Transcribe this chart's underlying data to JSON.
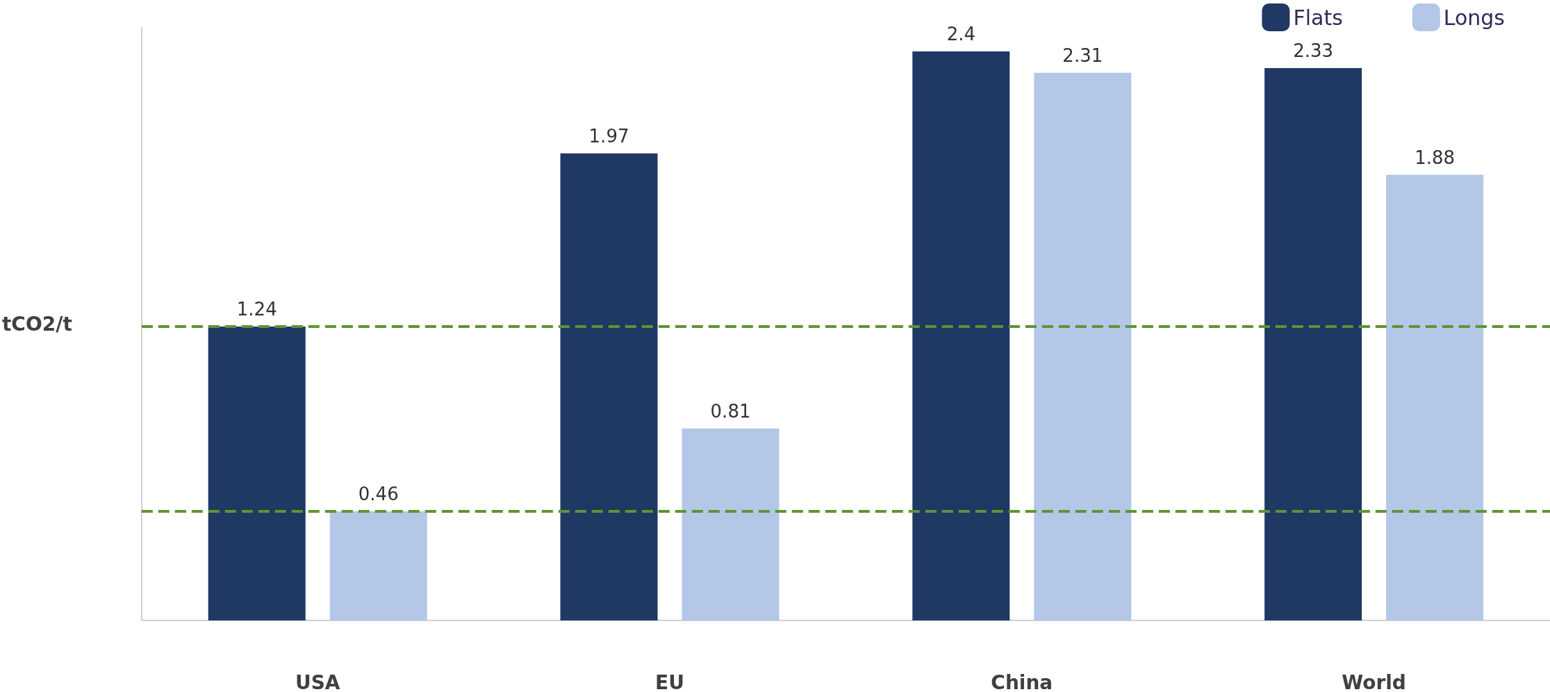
{
  "chart_data": {
    "type": "bar",
    "ylabel": "tCO2/t",
    "categories": [
      "USA",
      "EU",
      "China",
      "World"
    ],
    "series": [
      {
        "name": "Flats",
        "color": "#1f3864",
        "values": [
          1.24,
          1.97,
          2.4,
          2.33
        ]
      },
      {
        "name": "Longs",
        "color": "#b4c7e7",
        "values": [
          0.46,
          0.81,
          2.31,
          1.88
        ]
      }
    ],
    "data_labels": true,
    "legend": "top right",
    "grid": false,
    "ref_lines": [
      {
        "axis": "y",
        "value": 1.24,
        "color": "#5b9632",
        "line_style": "dashed"
      },
      {
        "axis": "y",
        "value": 0.46,
        "color": "#5b9632",
        "line_style": "dashed"
      }
    ]
  }
}
